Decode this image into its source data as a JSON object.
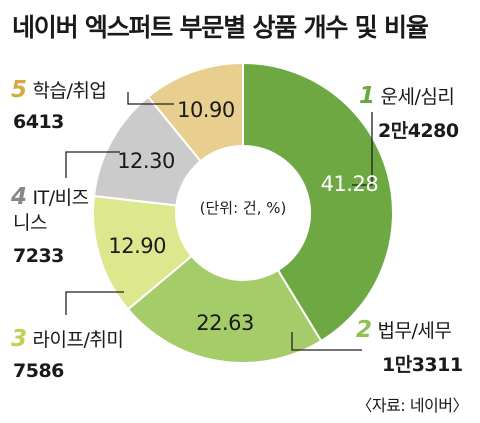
{
  "title": "네이버 엑스퍼트 부문별 상품 개수 및 비율",
  "center_label": "(단위: 건, %)",
  "source": "〈자료: 네이버〉",
  "colors": {
    "unse": "#6ea843",
    "beobmu": "#a4cd6a",
    "life": "#dde78e",
    "it": "#cbcbcb",
    "study": "#e9cf8f"
  },
  "categories": [
    {
      "rank": "1",
      "name": "운세/심리",
      "count": "2만4280",
      "pct": "41.28"
    },
    {
      "rank": "2",
      "name": "법무/세무",
      "count": "1만3311",
      "pct": "22.63"
    },
    {
      "rank": "3",
      "name": "라이프/취미",
      "count": "7586",
      "pct": "12.90"
    },
    {
      "rank": "4",
      "name_line1": "IT/비즈",
      "name_line2": "니스",
      "count": "7233",
      "pct": "12.30"
    },
    {
      "rank": "5",
      "name": "학습/취업",
      "count": "6413",
      "pct": "10.90"
    }
  ],
  "chart_data": {
    "type": "pie",
    "title": "네이버 엑스퍼트 부문별 상품 개수 및 비율",
    "unit": "(단위: 건, %)",
    "labels": [
      "운세/심리",
      "법무/세무",
      "라이프/취미",
      "IT/비즈니스",
      "학습/취업"
    ],
    "values": [
      41.28,
      22.63,
      12.9,
      12.3,
      10.9
    ],
    "counts": [
      24280,
      13311,
      7586,
      7233,
      6413
    ],
    "colors": [
      "#6ea843",
      "#a4cd6a",
      "#dde78e",
      "#cbcbcb",
      "#e9cf8f"
    ]
  }
}
